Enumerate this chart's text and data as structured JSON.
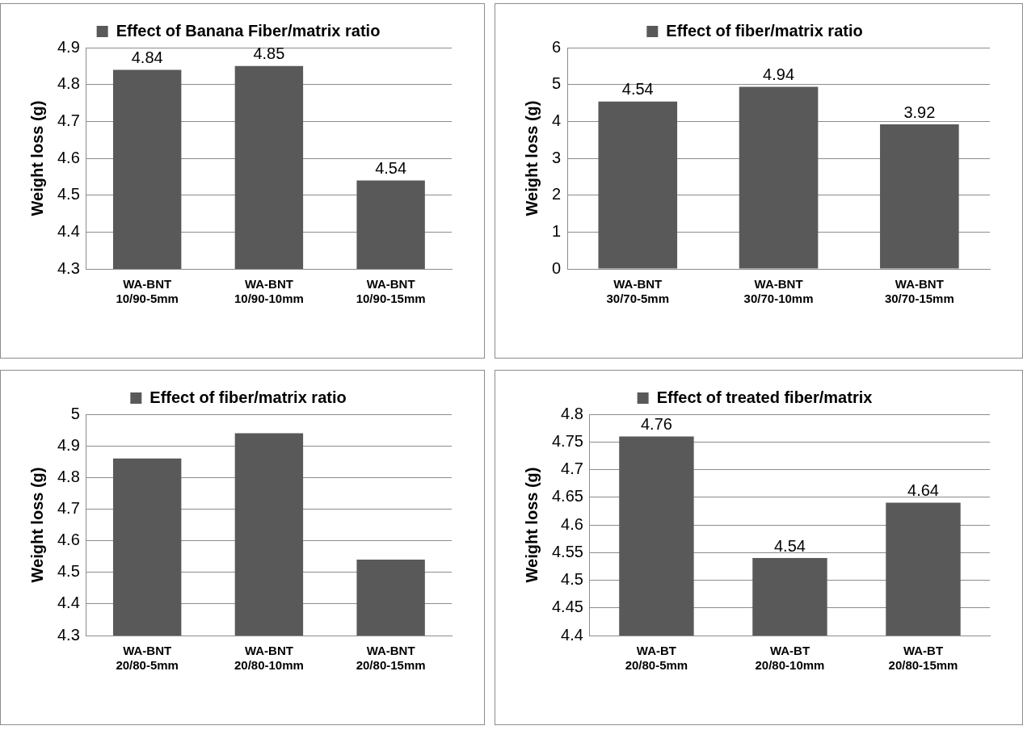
{
  "chart_data": [
    {
      "type": "bar",
      "categories": [
        "WA-BNT 10/90-5mm",
        "WA-BNT 10/90-10mm",
        "WA-BNT 10/90-15mm"
      ],
      "series": [
        {
          "name": "Effect of Banana Fiber/matrix ratio",
          "color": "#595959",
          "values": [
            4.84,
            4.85,
            4.54
          ]
        }
      ],
      "ylabel": "Weight loss (g)",
      "ylim": [
        4.3,
        4.9
      ],
      "yticks": [
        4.3,
        4.4,
        4.5,
        4.6,
        4.7,
        4.8,
        4.9
      ],
      "grid": "y",
      "legend": "top",
      "data_labels": true
    },
    {
      "type": "bar",
      "categories": [
        "WA-BNT 30/70-5mm",
        "WA-BNT 30/70-10mm",
        "WA-BNT 30/70-15mm"
      ],
      "series": [
        {
          "name": "Effect of fiber/matrix ratio",
          "color": "#595959",
          "values": [
            4.54,
            4.94,
            3.92
          ]
        }
      ],
      "ylabel": "Weight loss (g)",
      "ylim": [
        0,
        6
      ],
      "yticks": [
        0,
        1,
        2,
        3,
        4,
        5,
        6
      ],
      "grid": "y",
      "legend": "top",
      "data_labels": true
    },
    {
      "type": "bar",
      "categories": [
        "WA-BNT 20/80-5mm",
        "WA-BNT 20/80-10mm",
        "WA-BNT 20/80-15mm"
      ],
      "series": [
        {
          "name": "Effect of fiber/matrix ratio",
          "color": "#595959",
          "values": [
            4.86,
            4.94,
            4.54
          ]
        }
      ],
      "ylabel": "Weight loss (g)",
      "ylim": [
        4.3,
        5
      ],
      "yticks": [
        4.3,
        4.4,
        4.5,
        4.6,
        4.7,
        4.8,
        4.9,
        5
      ],
      "grid": "y",
      "legend": "top"
    },
    {
      "type": "bar",
      "categories": [
        "WA-BT 20/80-5mm",
        "WA-BT 20/80-10mm",
        "WA-BT 20/80-15mm"
      ],
      "series": [
        {
          "name": "Effect of treated fiber/matrix",
          "color": "#595959",
          "values": [
            4.76,
            4.54,
            4.64
          ]
        }
      ],
      "ylabel": "Weight loss (g)",
      "ylim": [
        4.4,
        4.8
      ],
      "yticks": [
        4.4,
        4.45,
        4.5,
        4.55,
        4.6,
        4.65,
        4.7,
        4.75,
        4.8
      ],
      "grid": "y",
      "legend": "top",
      "data_labels": true
    }
  ]
}
